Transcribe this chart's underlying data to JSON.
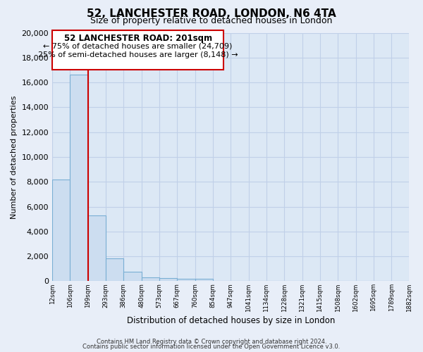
{
  "title": "52, LANCHESTER ROAD, LONDON, N6 4TA",
  "subtitle": "Size of property relative to detached houses in London",
  "xlabel": "Distribution of detached houses by size in London",
  "ylabel": "Number of detached properties",
  "bin_labels": [
    "12sqm",
    "106sqm",
    "199sqm",
    "293sqm",
    "386sqm",
    "480sqm",
    "573sqm",
    "667sqm",
    "760sqm",
    "854sqm",
    "947sqm",
    "1041sqm",
    "1134sqm",
    "1228sqm",
    "1321sqm",
    "1415sqm",
    "1508sqm",
    "1602sqm",
    "1695sqm",
    "1789sqm",
    "1882sqm"
  ],
  "bar_values": [
    8200,
    16600,
    5300,
    1850,
    750,
    300,
    270,
    200,
    200,
    0,
    0,
    0,
    0,
    0,
    0,
    0,
    0,
    0,
    0,
    0
  ],
  "bar_color": "#ccddf0",
  "bar_edge_color": "#7aafd4",
  "property_line_idx": 2,
  "property_line_color": "#cc0000",
  "ylim": [
    0,
    20000
  ],
  "yticks": [
    0,
    2000,
    4000,
    6000,
    8000,
    10000,
    12000,
    14000,
    16000,
    18000,
    20000
  ],
  "annotation_title": "52 LANCHESTER ROAD: 201sqm",
  "annotation_line1": "← 75% of detached houses are smaller (24,709)",
  "annotation_line2": "25% of semi-detached houses are larger (8,148) →",
  "footer_line1": "Contains HM Land Registry data © Crown copyright and database right 2024.",
  "footer_line2": "Contains public sector information licensed under the Open Government Licence v3.0.",
  "background_color": "#e8eef8",
  "plot_bg_color": "#dce8f5",
  "grid_color": "#c0d0e8"
}
